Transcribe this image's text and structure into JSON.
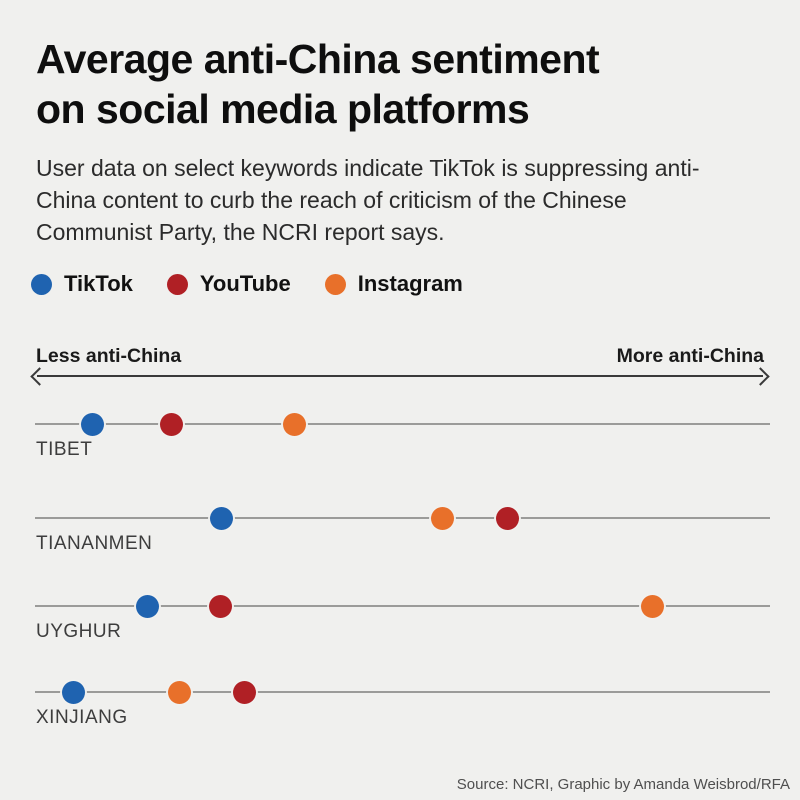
{
  "header": {
    "title_line1": "Average anti-China sentiment",
    "title_line2": "on social media platforms",
    "subtitle": "User data on select keywords indicate TikTok is suppressing anti-China content to curb the reach of criticism of the Chinese Communist Party, the NCRI report says."
  },
  "axis": {
    "left_label": "Less anti-China",
    "right_label": "More anti-China"
  },
  "source": "Source: NCRI, Graphic by Amanda Weisbrod/RFA",
  "colors": {
    "background": "#f0f0ee",
    "tiktok_blue": "#1f63b0",
    "youtube_red": "#b02025",
    "instagram_orange": "#e8702a",
    "row_line_gray": "#9b9b99",
    "arrow_dark": "#3a3a3a"
  },
  "chart_data": {
    "type": "scatter",
    "subtype": "dot-plot",
    "title": "Average anti-China sentiment on social media platforms",
    "categories": [
      "TIBET",
      "TIANANMEN",
      "UYGHUR",
      "XINJIANG"
    ],
    "series": [
      {
        "name": "TikTok",
        "color": "#1f63b0",
        "values": [
          7.9,
          25.5,
          15.4,
          5.2
        ]
      },
      {
        "name": "YouTube",
        "color": "#b02025",
        "values": [
          18.7,
          64.5,
          25.3,
          28.6
        ]
      },
      {
        "name": "Instagram",
        "color": "#e8702a",
        "values": [
          35.5,
          55.7,
          84.3,
          19.8
        ]
      }
    ],
    "xlabel": "",
    "ylabel": "",
    "x_axis": {
      "scale_note": "qualitative relative position along axis, 0 = least anti-China, 100 = most anti-China",
      "range": [
        0,
        100
      ],
      "left_label": "Less anti-China",
      "right_label": "More anti-China"
    },
    "grid": false,
    "legend_position": "top-left"
  }
}
